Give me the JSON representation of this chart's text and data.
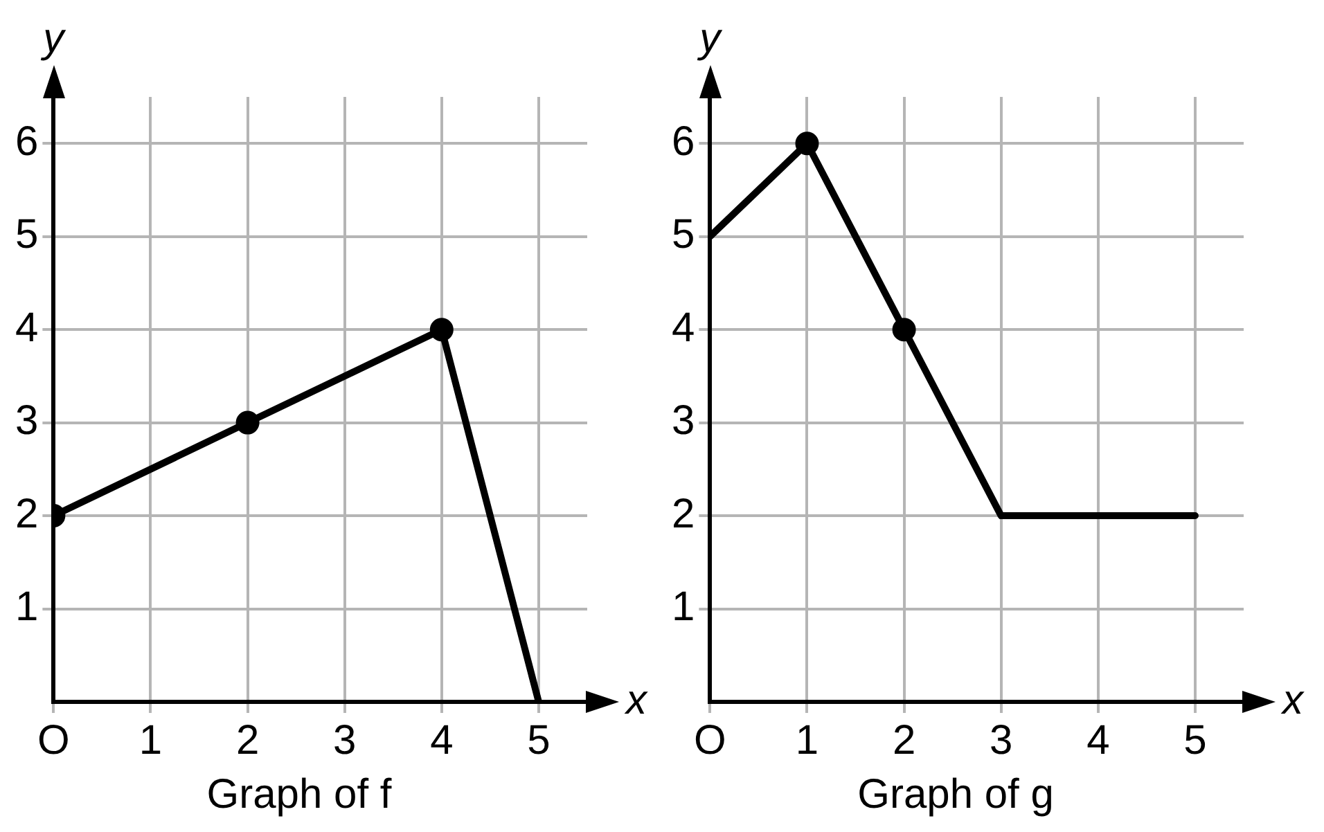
{
  "chart_data": [
    {
      "type": "line",
      "title": "Graph of f",
      "xlabel": "x",
      "ylabel": "y",
      "xlim": [
        0,
        5.5
      ],
      "ylim": [
        0,
        6.5
      ],
      "xticks": [
        {
          "value": 0,
          "label": "O"
        },
        1,
        2,
        3,
        4,
        5
      ],
      "yticks": [
        1,
        2,
        3,
        4,
        5,
        6
      ],
      "grid": true,
      "legend": false,
      "series": [
        {
          "type": "line",
          "x": [
            0,
            2,
            4,
            5
          ],
          "values": [
            2,
            3,
            4,
            0
          ],
          "color": "#000000",
          "marker": "none"
        },
        {
          "type": "scatter",
          "x": [
            0,
            2,
            4
          ],
          "values": [
            2,
            3,
            4
          ],
          "color": "#000000",
          "marker": "circle"
        }
      ]
    },
    {
      "type": "line",
      "title": "Graph of g",
      "xlabel": "x",
      "ylabel": "y",
      "xlim": [
        0,
        5.5
      ],
      "ylim": [
        0,
        6.5
      ],
      "xticks": [
        {
          "value": 0,
          "label": "O"
        },
        1,
        2,
        3,
        4,
        5
      ],
      "yticks": [
        1,
        2,
        3,
        4,
        5,
        6
      ],
      "grid": true,
      "legend": false,
      "series": [
        {
          "type": "line",
          "x": [
            0,
            1,
            2,
            3,
            5
          ],
          "values": [
            5,
            6,
            4,
            2,
            2
          ],
          "color": "#000000",
          "marker": "none"
        },
        {
          "type": "scatter",
          "x": [
            1,
            2
          ],
          "values": [
            6,
            4
          ],
          "color": "#000000",
          "marker": "circle"
        }
      ]
    }
  ]
}
